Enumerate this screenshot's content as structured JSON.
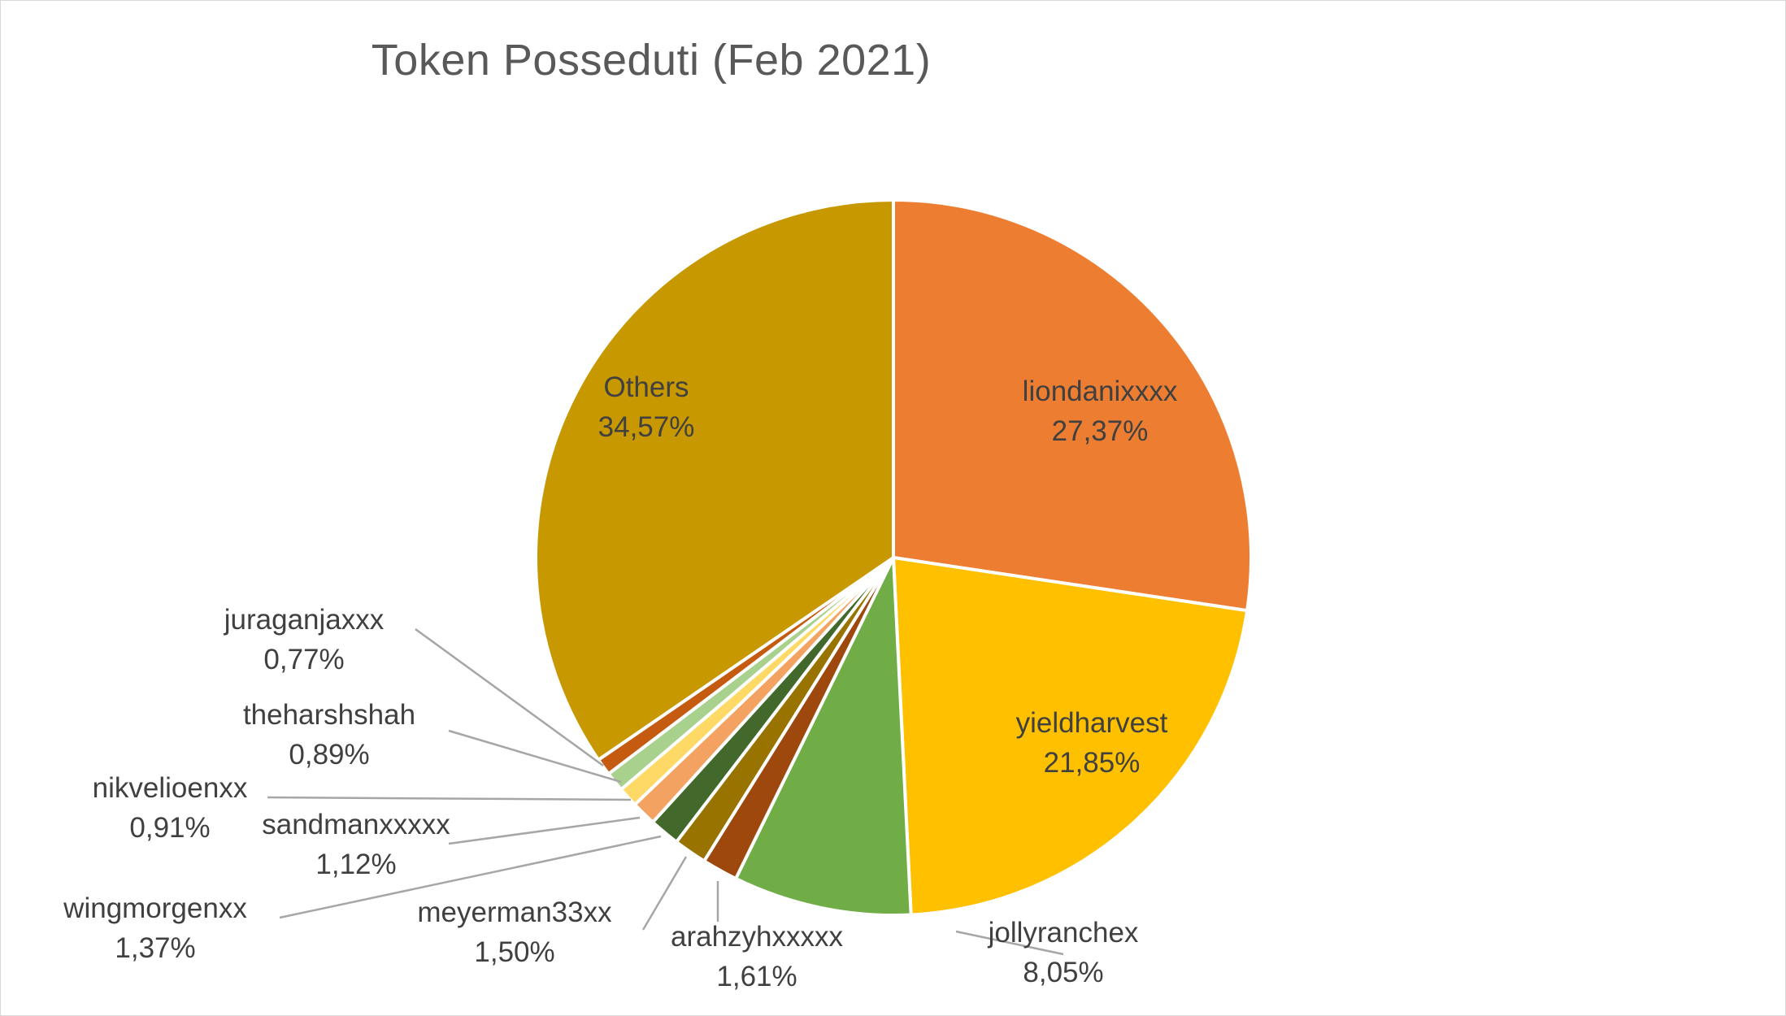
{
  "chart_data": {
    "type": "pie",
    "title": "Token Posseduti (Feb 2021)",
    "slices": [
      {
        "name": "liondanixxxx",
        "value": 27.37,
        "label": "27,37%",
        "color": "#ed7d31",
        "label_mode": "inside"
      },
      {
        "name": "yieldharvest",
        "value": 21.85,
        "label": "21,85%",
        "color": "#ffc000",
        "label_mode": "inside"
      },
      {
        "name": "jollyranchex",
        "value": 8.05,
        "label": "8,05%",
        "color": "#70ad47",
        "label_mode": "outside"
      },
      {
        "name": "arahzyhxxxxx",
        "value": 1.61,
        "label": "1,61%",
        "color": "#9e480e",
        "label_mode": "outside"
      },
      {
        "name": "meyerman33xx",
        "value": 1.5,
        "label": "1,50%",
        "color": "#997300",
        "label_mode": "outside"
      },
      {
        "name": "wingmorgenxx",
        "value": 1.37,
        "label": "1,37%",
        "color": "#43682b",
        "label_mode": "outside"
      },
      {
        "name": "sandmanxxxxx",
        "value": 1.12,
        "label": "1,12%",
        "color": "#f4a261",
        "label_mode": "outside"
      },
      {
        "name": "nikvelioenxx",
        "value": 0.91,
        "label": "0,91%",
        "color": "#ffd966",
        "label_mode": "outside"
      },
      {
        "name": "theharshshah",
        "value": 0.89,
        "label": "0,89%",
        "color": "#a9d18e",
        "label_mode": "outside"
      },
      {
        "name": "juraganjaxxx",
        "value": 0.77,
        "label": "0,77%",
        "color": "#c55a11",
        "label_mode": "outside"
      },
      {
        "name": "Others",
        "value": 34.57,
        "label": "34,57%",
        "color": "#c89800",
        "label_mode": "inside"
      }
    ],
    "start_angle_deg": 0,
    "direction": "clockwise",
    "legend": "none"
  }
}
